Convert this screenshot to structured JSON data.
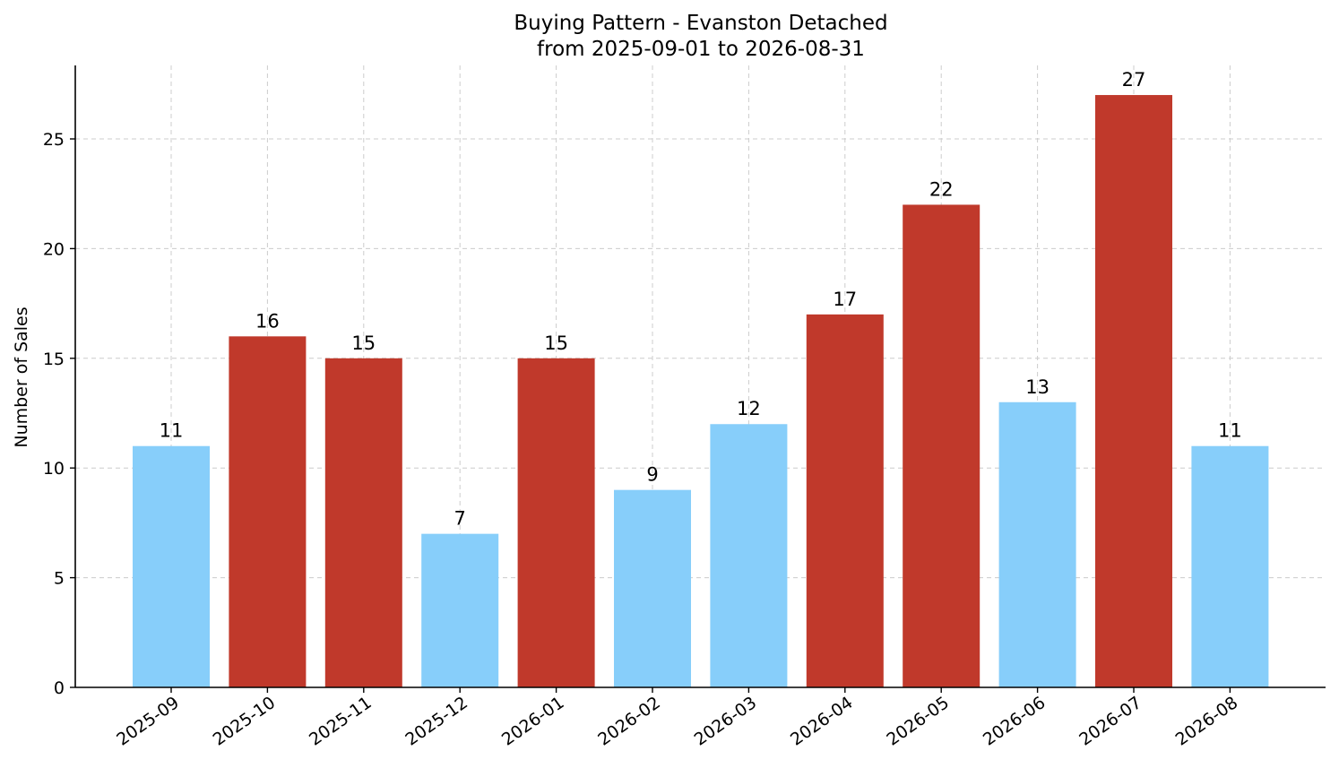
{
  "chart_data": {
    "type": "bar",
    "title": "Buying Pattern - Evanston Detached",
    "subtitle": "from 2025-09-01 to 2026-08-31",
    "xlabel": "",
    "ylabel": "Number of Sales",
    "categories": [
      "2025-09",
      "2025-10",
      "2025-11",
      "2025-12",
      "2026-01",
      "2026-02",
      "2026-03",
      "2026-04",
      "2026-05",
      "2026-06",
      "2026-07",
      "2026-08"
    ],
    "values": [
      11,
      16,
      15,
      7,
      15,
      9,
      12,
      17,
      22,
      13,
      27,
      11
    ],
    "bar_colors": [
      "#87cefa",
      "#c0392b",
      "#c0392b",
      "#87cefa",
      "#c0392b",
      "#87cefa",
      "#87cefa",
      "#c0392b",
      "#c0392b",
      "#87cefa",
      "#c0392b",
      "#87cefa"
    ],
    "ylim": [
      0,
      28.35
    ],
    "yticks": [
      0,
      5,
      10,
      15,
      20,
      25
    ],
    "grid": true,
    "data_labels": true
  }
}
